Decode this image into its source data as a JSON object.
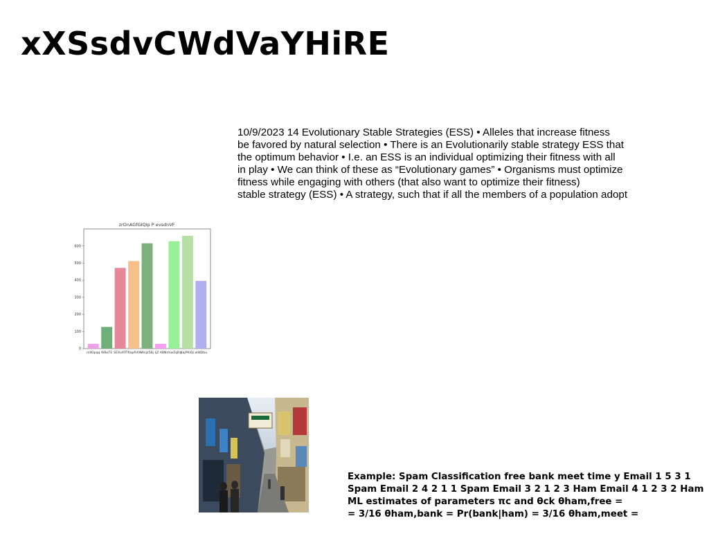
{
  "slide": {
    "title": "xXSsdvCWdVaYHiRE",
    "paragraph1": [
      "10/9/2023 14 Evolutionary Stable Strategies (ESS) • Alleles that increase fitness",
      "be favored by natural selection • There is an Evolutionarily stable strategy ESS that",
      "the optimum behavior • I.e. an ESS is an individual optimizing their fitness with all",
      "in play • We can think of these as “Evolutionary games” • Organisms must optimize",
      "fitness while engaging with others (that also want to optimize their fitness)",
      "stable strategy (ESS) • A strategy, such that if all the members of a population adopt"
    ],
    "paragraph2": [
      "Example: Spam Classification free bank meet time y Email 1 5 3 1",
      "Spam Email 2 4 2 1 1 Spam Email 3 2 1 2 3 Ham Email 4 1 2 3 2 Ham",
      "ML estimates of parameters πc and θck θham,free =",
      "= 3/16 θham,bank = Pr(bank|ham) = 3/16 θham,meet ="
    ]
  },
  "chart_data": {
    "type": "bar",
    "title": "zrOnAGfGIQIp P evsdnVF",
    "categories": [
      "mIlDpqq",
      "WBoTE",
      "SEXvlRT",
      "TRapRXW",
      "Wnjz5Bj",
      "IjZ ABN",
      "nhwZqRq",
      "KajPKiQL",
      "wWDbu"
    ],
    "values": [
      28,
      127,
      472,
      512,
      616,
      28,
      628,
      660,
      396
    ],
    "colors": [
      "#f0a0e8",
      "#6fb07a",
      "#e58898",
      "#f5c08c",
      "#7db07d",
      "#f3a0f0",
      "#98f098",
      "#b6e0a6",
      "#b0b0f0"
    ],
    "ylim": [
      0,
      700
    ],
    "yticks": [
      0,
      100,
      200,
      300,
      400,
      500,
      600
    ],
    "xlabel": "",
    "ylabel": "",
    "grid": false
  },
  "photo": {
    "subject": "narrow city street with colorful storefronts and shop signs, pedestrians walking"
  }
}
